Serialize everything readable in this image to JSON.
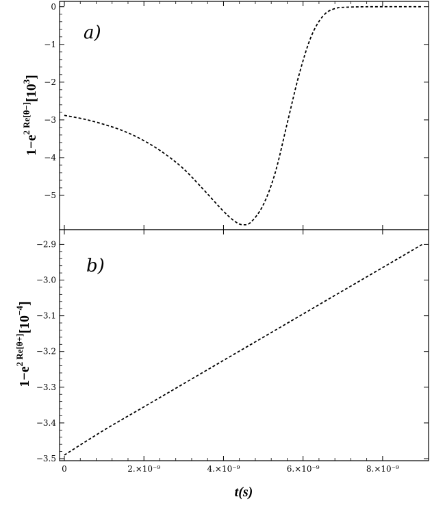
{
  "chart_data": [
    {
      "type": "line",
      "panel_label": "a)",
      "ylabel_text": "1−e",
      "ylabel_sup": "2 Re[θ−]",
      "ylabel_rest": "[10",
      "ylabel_exp": "3",
      "ylabel_close": "]",
      "ylim": [
        -5.8,
        0.05
      ],
      "yticks": [
        0,
        -1,
        -2,
        -3,
        -4,
        -5
      ],
      "ytick_labels": [
        "0",
        "−1",
        "−2",
        "−3",
        "−4",
        "−5"
      ],
      "xlim": [
        0,
        9e-09
      ],
      "series": [
        {
          "style": "dashed",
          "x": [
            0,
            5e-10,
            1e-09,
            1.5e-09,
            2e-09,
            2.5e-09,
            3e-09,
            3.5e-09,
            4e-09,
            4.3e-09,
            4.5e-09,
            4.7e-09,
            5e-09,
            5.3e-09,
            5.6e-09,
            5.9e-09,
            6.2e-09,
            6.5e-09,
            6.8e-09,
            7.2e-09,
            8e-09,
            9e-09
          ],
          "y": [
            -2.88,
            -2.98,
            -3.12,
            -3.3,
            -3.55,
            -3.88,
            -4.3,
            -4.85,
            -5.42,
            -5.7,
            -5.78,
            -5.7,
            -5.25,
            -4.4,
            -3.1,
            -1.8,
            -0.8,
            -0.25,
            -0.05,
            -0.01,
            0,
            0
          ]
        }
      ]
    },
    {
      "type": "line",
      "panel_label": "b)",
      "ylabel_text": "1−e",
      "ylabel_sup": "2 Re[θ+]",
      "ylabel_rest": "[10",
      "ylabel_exp": "−4",
      "ylabel_close": "]",
      "ylim": [
        -3.5,
        -2.88
      ],
      "yticks": [
        -2.9,
        -3.0,
        -3.1,
        -3.2,
        -3.3,
        -3.4,
        -3.5
      ],
      "ytick_labels": [
        "−2.9",
        "−3.0",
        "−3.1",
        "−3.2",
        "−3.3",
        "−3.4",
        "−3.5"
      ],
      "xlim": [
        0,
        9e-09
      ],
      "xticks": [
        0,
        2e-09,
        4e-09,
        6e-09,
        8e-09
      ],
      "xtick_labels": [
        "0",
        "2.×10⁻⁹",
        "4.×10⁻⁹",
        "6.×10⁻⁹",
        "8.×10⁻⁹"
      ],
      "xlabel": "t(s)",
      "series": [
        {
          "style": "dashed",
          "x": [
            0,
            1e-09,
            2e-09,
            3e-09,
            4e-09,
            5e-09,
            6e-09,
            7e-09,
            8e-09,
            9e-09
          ],
          "y": [
            -3.49,
            -3.42,
            -3.355,
            -3.29,
            -3.225,
            -3.16,
            -3.095,
            -3.03,
            -2.965,
            -2.9
          ]
        }
      ]
    }
  ]
}
